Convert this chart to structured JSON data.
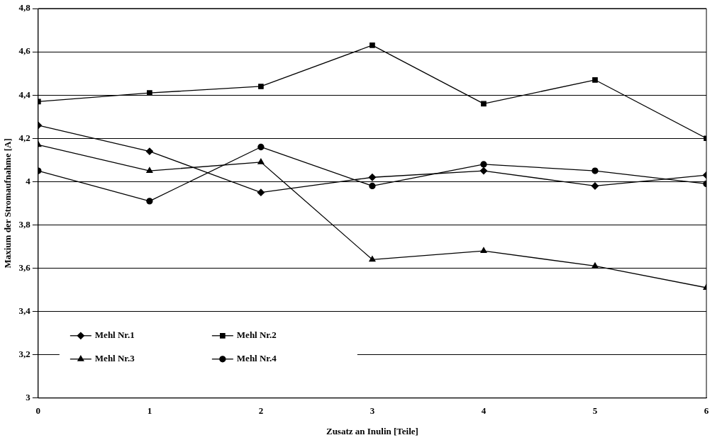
{
  "chart_data": {
    "type": "line",
    "xlabel": "Zusatz an Inulin [Teile]",
    "ylabel": "Maxium der Stromaufnahme [A]",
    "x": [
      0,
      1,
      2,
      3,
      4,
      5,
      6
    ],
    "series": [
      {
        "name": "Mehl Nr.1",
        "color": "#000000",
        "marker": "diamond",
        "values": [
          4.26,
          4.14,
          3.95,
          4.02,
          4.05,
          3.98,
          4.03
        ]
      },
      {
        "name": "Mehl Nr.2",
        "color": "#000000",
        "marker": "square",
        "values": [
          4.37,
          4.41,
          4.44,
          4.63,
          4.36,
          4.47,
          4.2
        ]
      },
      {
        "name": "Mehl Nr.3",
        "color": "#000000",
        "marker": "triangle",
        "values": [
          4.17,
          4.05,
          4.09,
          3.64,
          3.68,
          3.61,
          3.51
        ]
      },
      {
        "name": "Mehl Nr.4",
        "color": "#000000",
        "marker": "circle",
        "values": [
          4.05,
          3.91,
          4.16,
          3.98,
          4.08,
          4.05,
          3.99
        ]
      }
    ],
    "xlim": [
      0,
      6
    ],
    "xticks": [
      0,
      1,
      2,
      3,
      4,
      5,
      6
    ],
    "ylim": [
      3,
      4.8
    ],
    "yticks": [
      3,
      {
        "value": 3.2,
        "label": "3,2"
      },
      {
        "value": 3.4,
        "label": "3,4"
      },
      {
        "value": 3.6,
        "label": "3,6"
      },
      {
        "value": 3.8,
        "label": "3,8"
      },
      4,
      {
        "value": 4.2,
        "label": "4,2"
      },
      {
        "value": 4.4,
        "label": "4,4"
      },
      {
        "value": 4.6,
        "label": "4,6"
      },
      {
        "value": 4.8,
        "label": "4,8"
      }
    ],
    "grid": "y",
    "legend": "bottom left",
    "line_style": "solid"
  }
}
